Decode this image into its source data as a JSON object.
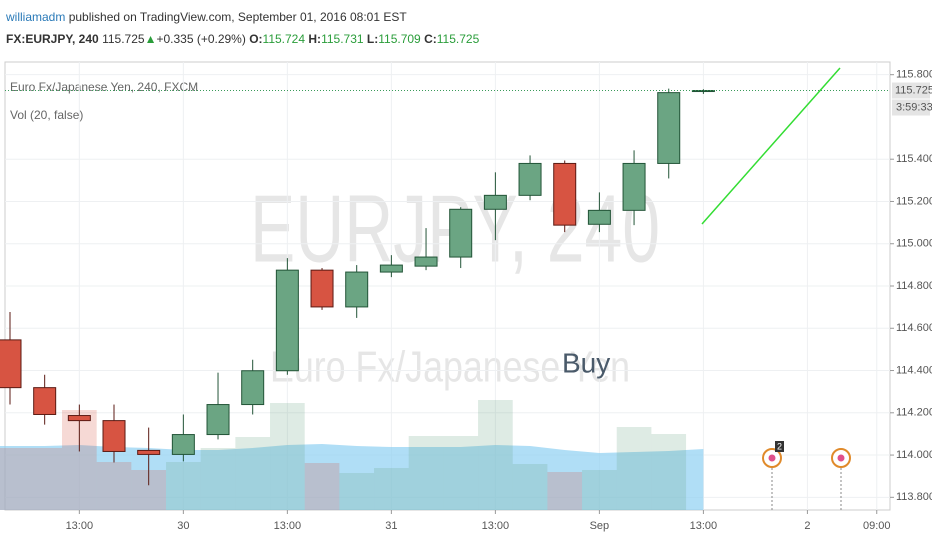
{
  "header": {
    "author": "williamadm",
    "published": "published on TradingView.com, September 01, 2016 08:01 EST",
    "symbol": "FX:EURJPY, 240",
    "price": "115.725",
    "arrow": "▲",
    "change": "+0.335 (+0.29%)",
    "o_label": "O:",
    "o_value": "115.724",
    "h_label": "H:",
    "h_value": "115.731",
    "l_label": "L:",
    "l_value": "115.709",
    "c_label": "C:",
    "c_value": "115.725"
  },
  "chart_data": {
    "type": "candlestick",
    "legend": [
      "Euro Fx/Japanese Yen, 240, FXCM",
      "Vol (20, false)"
    ],
    "watermark": [
      "EURJPY, 240",
      "Euro Fx/Japanese Yen"
    ],
    "annotation": "Buy",
    "countdown": "3:59:33",
    "last_price": 115.725,
    "event_badge": "2",
    "categories": [
      null,
      null,
      "13:00",
      null,
      null,
      "30",
      null,
      null,
      "13:00",
      null,
      null,
      "31",
      null,
      null,
      "13:00",
      null,
      null,
      "Sep",
      null,
      null,
      "13:00",
      null,
      null,
      "2",
      null,
      "09:00"
    ],
    "open": [
      114.545,
      114.319,
      114.187,
      114.163,
      114.022,
      114.003,
      114.097,
      114.239,
      114.399,
      114.875,
      114.701,
      114.866,
      114.894,
      114.937,
      115.163,
      115.229,
      115.38,
      115.092,
      115.158,
      115.38,
      115.724,
      null,
      null,
      null,
      null,
      null
    ],
    "high": [
      114.677,
      114.38,
      114.239,
      114.239,
      114.13,
      114.192,
      114.39,
      114.451,
      114.932,
      114.885,
      114.899,
      114.946,
      115.074,
      115.173,
      115.338,
      115.418,
      115.394,
      115.243,
      115.442,
      115.734,
      115.731,
      null,
      null,
      null,
      null,
      null
    ],
    "low": [
      114.239,
      114.144,
      114.017,
      113.965,
      113.857,
      113.97,
      114.074,
      114.192,
      114.38,
      114.687,
      114.649,
      114.842,
      114.875,
      114.885,
      115.017,
      115.206,
      115.055,
      115.055,
      115.088,
      115.309,
      115.709,
      null,
      null,
      null,
      null,
      null
    ],
    "close": [
      114.319,
      114.192,
      114.163,
      114.017,
      114.003,
      114.097,
      114.239,
      114.399,
      114.875,
      114.701,
      114.866,
      114.899,
      114.937,
      115.163,
      115.229,
      115.38,
      115.088,
      115.158,
      115.38,
      115.715,
      115.725,
      null,
      null,
      null,
      null,
      null
    ],
    "volume": [
      62,
      62,
      100,
      48,
      40,
      48,
      62,
      73,
      107,
      47,
      37,
      42,
      74,
      74,
      110,
      46,
      38,
      40,
      83,
      76,
      null,
      null,
      null,
      null,
      null,
      null
    ],
    "volume_ma": [
      64,
      64,
      65,
      63,
      62,
      60,
      60,
      62,
      65,
      66,
      64,
      63,
      63,
      63,
      65,
      64,
      60,
      57,
      58,
      59,
      61,
      null,
      null,
      null,
      null,
      null
    ],
    "volume_ylim": [
      0,
      448
    ],
    "up_color": "#6ba583",
    "down_color": "#d75442",
    "volume_ma_color": "#8fd0f2",
    "ylim": [
      113.74,
      115.86
    ],
    "yticks": [
      {
        "value": 113.8,
        "label": "113.800"
      },
      {
        "value": 114.0,
        "label": "114.000"
      },
      {
        "value": 114.2,
        "label": "114.200"
      },
      {
        "value": 114.4,
        "label": "114.400"
      },
      {
        "value": 114.6,
        "label": "114.600"
      },
      {
        "value": 114.8,
        "label": "114.800"
      },
      {
        "value": 115.0,
        "label": "115.000"
      },
      {
        "value": 115.2,
        "label": "115.200"
      },
      {
        "value": 115.4,
        "label": "115.400"
      },
      {
        "value": 115.8,
        "label": "115.800"
      }
    ],
    "grid": true
  }
}
